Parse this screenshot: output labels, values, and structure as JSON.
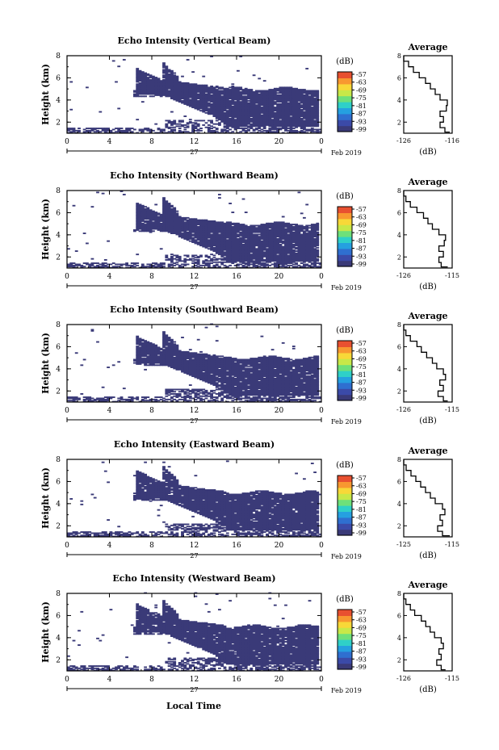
{
  "figure": {
    "xlabel": "Local Time",
    "date_label": "Feb 2019",
    "day_label": "27",
    "colorbar_unit": "(dB)",
    "colorbar_ticks": [
      "-57",
      "-63",
      "-69",
      "-75",
      "-81",
      "-87",
      "-93",
      "-99"
    ],
    "colors": {
      "echo": "#3a3a78",
      "colorbar": [
        "#3a3a78",
        "#3b4aa8",
        "#2f6fd0",
        "#25a0e0",
        "#2fd0c8",
        "#6ee07a",
        "#c8e848",
        "#f8d838",
        "#f89830",
        "#e85030"
      ]
    }
  },
  "chart_data": [
    {
      "type": "heatmap",
      "title": "Echo Intensity (Vertical Beam)",
      "ylabel": "Height (km)",
      "xlim": [
        0,
        24
      ],
      "ylim": [
        1,
        8
      ],
      "x_ticks": [
        "0",
        "4",
        "8",
        "12",
        "16",
        "20",
        "0"
      ],
      "y_ticks": [
        "2",
        "4",
        "6",
        "8"
      ],
      "profile": {
        "title": "Average",
        "xlabel": "(dB)",
        "xlim": [
          -126,
          -116
        ],
        "x_ticks": [
          "-126",
          "-116"
        ],
        "y_ticks": [
          "2",
          "4",
          "6",
          "8"
        ],
        "height_km": [
          1.1,
          1.5,
          2.0,
          2.5,
          3.0,
          3.5,
          4.0,
          4.5,
          5.0,
          5.5,
          6.0,
          6.5,
          7.0,
          7.5,
          8.0
        ],
        "average_db": [
          -116.5,
          -117.5,
          -118.5,
          -117.8,
          -118.5,
          -117.2,
          -117.0,
          -118.5,
          -119.5,
          -120.5,
          -121.5,
          -122.8,
          -124.0,
          -125.0,
          -126.0
        ]
      }
    },
    {
      "type": "heatmap",
      "title": "Echo Intensity (Northward Beam)",
      "ylabel": "Height (km)",
      "xlim": [
        0,
        24
      ],
      "ylim": [
        1,
        8
      ],
      "x_ticks": [
        "0",
        "4",
        "8",
        "12",
        "16",
        "20",
        "0"
      ],
      "y_ticks": [
        "2",
        "4",
        "6",
        "8"
      ],
      "profile": {
        "title": "Average",
        "xlabel": "(dB)",
        "xlim": [
          -126,
          -115
        ],
        "x_ticks": [
          "-126",
          "-115"
        ],
        "y_ticks": [
          "2",
          "4",
          "6",
          "8"
        ],
        "height_km": [
          1.1,
          1.5,
          2.0,
          2.5,
          3.0,
          3.5,
          4.0,
          4.5,
          5.0,
          5.5,
          6.0,
          6.5,
          7.0,
          7.5,
          8.0
        ],
        "average_db": [
          -116.0,
          -117.5,
          -118.0,
          -117.0,
          -118.0,
          -116.8,
          -116.5,
          -118.0,
          -119.5,
          -120.5,
          -121.5,
          -123.0,
          -124.5,
          -125.5,
          -126.0
        ]
      }
    },
    {
      "type": "heatmap",
      "title": "Echo Intensity (Southward Beam)",
      "ylabel": "Height (km)",
      "xlim": [
        0,
        24
      ],
      "ylim": [
        1,
        8
      ],
      "x_ticks": [
        "0",
        "4",
        "8",
        "12",
        "16",
        "20",
        "0"
      ],
      "y_ticks": [
        "2",
        "4",
        "6",
        "8"
      ],
      "profile": {
        "title": "Average",
        "xlabel": "(dB)",
        "xlim": [
          -126,
          -115
        ],
        "x_ticks": [
          "-126",
          "-115"
        ],
        "y_ticks": [
          "2",
          "4",
          "6",
          "8"
        ],
        "height_km": [
          1.1,
          1.5,
          2.0,
          2.5,
          3.0,
          3.5,
          4.0,
          4.5,
          5.0,
          5.5,
          6.0,
          6.5,
          7.0,
          7.5,
          8.0
        ],
        "average_db": [
          -116.0,
          -117.0,
          -118.2,
          -117.0,
          -117.8,
          -116.5,
          -117.0,
          -118.5,
          -119.5,
          -120.8,
          -122.0,
          -123.0,
          -124.5,
          -125.5,
          -126.0
        ]
      }
    },
    {
      "type": "heatmap",
      "title": "Echo Intensity (Eastward Beam)",
      "ylabel": "Height (km)",
      "xlim": [
        0,
        24
      ],
      "ylim": [
        1,
        8
      ],
      "x_ticks": [
        "0",
        "4",
        "8",
        "12",
        "16",
        "20",
        "0"
      ],
      "y_ticks": [
        "2",
        "4",
        "6",
        "8"
      ],
      "profile": {
        "title": "Average",
        "xlabel": "(dB)",
        "xlim": [
          -125,
          -115
        ],
        "x_ticks": [
          "-125",
          "-115"
        ],
        "y_ticks": [
          "2",
          "4",
          "6",
          "8"
        ],
        "height_km": [
          1.1,
          1.5,
          2.0,
          2.5,
          3.0,
          3.5,
          4.0,
          4.5,
          5.0,
          5.5,
          6.0,
          6.5,
          7.0,
          7.5,
          8.0
        ],
        "average_db": [
          -115.5,
          -117.0,
          -118.0,
          -117.0,
          -117.5,
          -116.5,
          -117.0,
          -118.5,
          -119.5,
          -120.5,
          -121.5,
          -122.5,
          -123.5,
          -124.5,
          -125.0
        ]
      }
    },
    {
      "type": "heatmap",
      "title": "Echo Intensity (Westward Beam)",
      "ylabel": "Height (km)",
      "xlim": [
        0,
        24
      ],
      "ylim": [
        1,
        8
      ],
      "x_ticks": [
        "0",
        "4",
        "8",
        "12",
        "16",
        "20",
        "0"
      ],
      "y_ticks": [
        "2",
        "4",
        "6",
        "8"
      ],
      "profile": {
        "title": "Average",
        "xlabel": "(dB)",
        "xlim": [
          -126,
          -115
        ],
        "x_ticks": [
          "-126",
          "-115"
        ],
        "y_ticks": [
          "2",
          "4",
          "6",
          "8"
        ],
        "height_km": [
          1.1,
          1.5,
          2.0,
          2.5,
          3.0,
          3.5,
          4.0,
          4.5,
          5.0,
          5.5,
          6.0,
          6.5,
          7.0,
          7.5,
          8.0
        ],
        "average_db": [
          -116.5,
          -117.5,
          -118.5,
          -117.5,
          -118.0,
          -117.0,
          -117.5,
          -119.0,
          -120.0,
          -121.0,
          -122.0,
          -123.5,
          -124.5,
          -125.5,
          -126.0
        ]
      }
    }
  ]
}
